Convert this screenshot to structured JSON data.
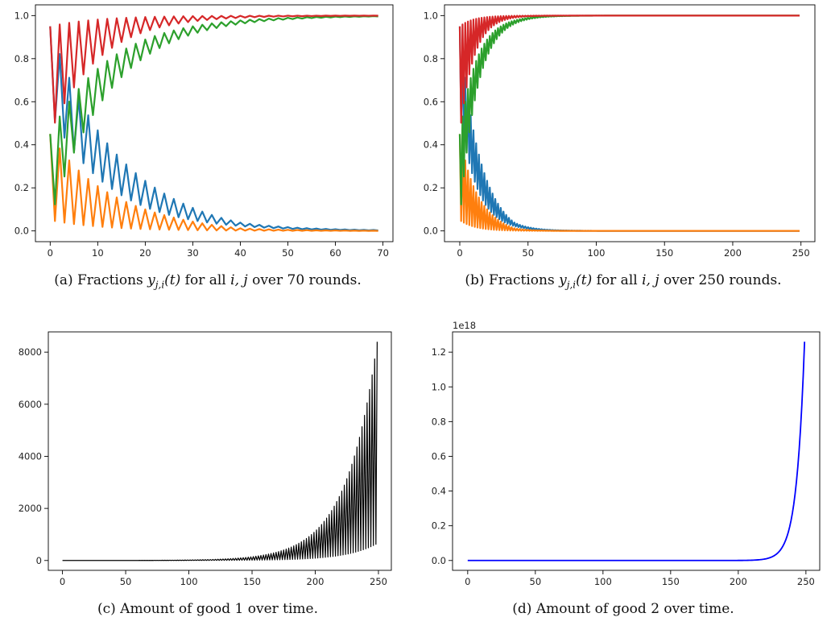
{
  "chart_data": [
    {
      "id": "a",
      "type": "line",
      "title": "",
      "xlabel": "",
      "ylabel": "",
      "xlim": [
        0,
        69
      ],
      "ylim": [
        0,
        1
      ],
      "xticks": [
        0,
        10,
        20,
        30,
        40,
        50,
        60,
        70
      ],
      "yticks": [
        0.0,
        0.2,
        0.4,
        0.6,
        0.8,
        1.0
      ],
      "x_tick_labels": [
        "0",
        "10",
        "20",
        "30",
        "40",
        "50",
        "60",
        "70"
      ],
      "y_tick_labels": [
        "0.0",
        "0.2",
        "0.4",
        "0.6",
        "0.8",
        "1.0"
      ],
      "grid": false,
      "oscillation": {
        "period": 2,
        "decay_half_life": 12
      },
      "series": [
        {
          "color": "#1f77b4",
          "start_high": 0.95,
          "start_low": 0.55,
          "end": 0.0,
          "rate": 0.08,
          "peak_amp": 0.4
        },
        {
          "color": "#ff7f0e",
          "start_high": 0.45,
          "start_low": 0.05,
          "end": 0.0,
          "rate": 0.09,
          "peak_amp": 0.25
        },
        {
          "color": "#2ca02c",
          "start_high": 0.45,
          "start_low": 0.05,
          "end": 1.0,
          "rate": 0.08,
          "peak_amp": 0.4
        },
        {
          "color": "#d62728",
          "start_high": 0.95,
          "start_low": 0.45,
          "end": 1.0,
          "rate": 0.1,
          "peak_amp": 0.25
        }
      ],
      "caption": {
        "label": "(a)",
        "text": "Fractions",
        "var": "y",
        "sub": "j,i",
        "arg": "(t)",
        "rest": "for all",
        "idx": "i, j",
        "tail": "over 70 rounds."
      }
    },
    {
      "id": "b",
      "type": "line",
      "title": "",
      "xlabel": "",
      "ylabel": "",
      "xlim": [
        0,
        249
      ],
      "ylim": [
        0,
        1
      ],
      "xticks": [
        0,
        50,
        100,
        150,
        200,
        250
      ],
      "yticks": [
        0.0,
        0.2,
        0.4,
        0.6,
        0.8,
        1.0
      ],
      "x_tick_labels": [
        "0",
        "50",
        "100",
        "150",
        "200",
        "250"
      ],
      "y_tick_labels": [
        "0.0",
        "0.2",
        "0.4",
        "0.6",
        "0.8",
        "1.0"
      ],
      "grid": false,
      "oscillation": {
        "period": 2,
        "decay_half_life": 12
      },
      "series": [
        {
          "color": "#1f77b4",
          "start_high": 0.95,
          "start_low": 0.55,
          "end": 0.0,
          "rate": 0.08,
          "peak_amp": 0.4
        },
        {
          "color": "#ff7f0e",
          "start_high": 0.45,
          "start_low": 0.05,
          "end": 0.0,
          "rate": 0.09,
          "peak_amp": 0.25
        },
        {
          "color": "#2ca02c",
          "start_high": 0.45,
          "start_low": 0.05,
          "end": 1.0,
          "rate": 0.08,
          "peak_amp": 0.4
        },
        {
          "color": "#d62728",
          "start_high": 0.95,
          "start_low": 0.45,
          "end": 1.0,
          "rate": 0.1,
          "peak_amp": 0.25
        }
      ],
      "caption": {
        "label": "(b)",
        "text": "Fractions",
        "var": "y",
        "sub": "j,i",
        "arg": "(t)",
        "rest": "for all",
        "idx": "i, j",
        "tail": "over 250 rounds."
      }
    },
    {
      "id": "c",
      "type": "line",
      "title": "",
      "xlabel": "",
      "ylabel": "",
      "xlim": [
        0,
        249
      ],
      "ylim": [
        0,
        8400
      ],
      "xticks": [
        0,
        50,
        100,
        150,
        200,
        250
      ],
      "yticks": [
        0,
        2000,
        4000,
        6000,
        8000
      ],
      "x_tick_labels": [
        "0",
        "50",
        "100",
        "150",
        "200",
        "250"
      ],
      "y_tick_labels": [
        "0",
        "2000",
        "4000",
        "6000",
        "8000"
      ],
      "grid": false,
      "series": [
        {
          "color": "#000000",
          "oscillating": true,
          "high_end": 8400,
          "low_end": 650,
          "growth": 0.041
        }
      ],
      "caption": {
        "label": "(c)",
        "text": "Amount of good 1 over time."
      }
    },
    {
      "id": "d",
      "type": "line",
      "title": "",
      "xlabel": "",
      "ylabel": "",
      "offset_label": "1e18",
      "xlim": [
        0,
        249
      ],
      "ylim": [
        0,
        1.26
      ],
      "xticks": [
        0,
        50,
        100,
        150,
        200,
        250
      ],
      "yticks": [
        0.0,
        0.2,
        0.4,
        0.6,
        0.8,
        1.0,
        1.2
      ],
      "x_tick_labels": [
        "0",
        "50",
        "100",
        "150",
        "200",
        "250"
      ],
      "y_tick_labels": [
        "0.0",
        "0.2",
        "0.4",
        "0.6",
        "0.8",
        "1.0",
        "1.2"
      ],
      "grid": false,
      "series": [
        {
          "color": "#0000ff",
          "oscillating": false,
          "end_value": 1.26,
          "growth": 0.17
        }
      ],
      "caption": {
        "label": "(d)",
        "text": "Amount of good 2 over time."
      }
    }
  ]
}
